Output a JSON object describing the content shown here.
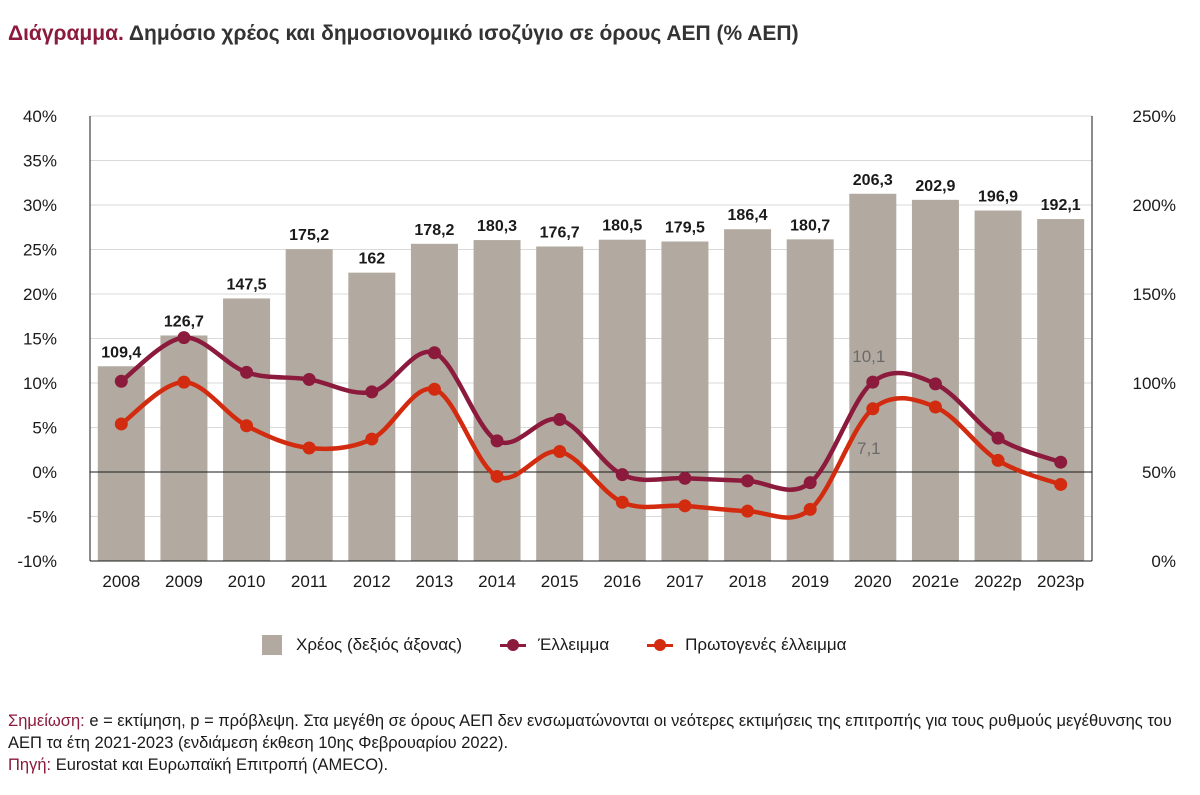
{
  "title": {
    "lead": "Διάγραμμα.",
    "text": "Δημόσιο χρέος και δημοσιονομικό ισοζύγιο σε όρους ΑΕΠ (% ΑΕΠ)"
  },
  "colors": {
    "bar": "#b2aaa0",
    "deficit": "#8b1a3c",
    "primary": "#d22b0f",
    "title_accent": "#8b1a3c"
  },
  "chart_data": {
    "type": "bar+line",
    "categories": [
      "2008",
      "2009",
      "2010",
      "2011",
      "2012",
      "2013",
      "2014",
      "2015",
      "2016",
      "2017",
      "2018",
      "2019",
      "2020",
      "2021e",
      "2022p",
      "2023p"
    ],
    "left_axis": {
      "min": -10,
      "max": 40,
      "step": 5,
      "ticks": [
        "40%",
        "35%",
        "30%",
        "25%",
        "20%",
        "15%",
        "10%",
        "5%",
        "0%",
        "-5%",
        "-10%"
      ]
    },
    "right_axis": {
      "min": 0,
      "max": 250,
      "step": 50,
      "ticks": [
        "250%",
        "200%",
        "150%",
        "100%",
        "50%",
        "0%"
      ]
    },
    "series": [
      {
        "name": "Χρέος (δεξιός άξονας)",
        "kind": "bar",
        "axis": "right",
        "values": [
          109.4,
          126.7,
          147.5,
          175.2,
          162,
          178.2,
          180.3,
          176.7,
          180.5,
          179.5,
          186.4,
          180.7,
          206.3,
          202.9,
          196.9,
          192.1
        ],
        "labels": [
          "109,4",
          "126,7",
          "147,5",
          "175,2",
          "162",
          "178,2",
          "180,3",
          "176,7",
          "180,5",
          "179,5",
          "186,4",
          "180,7",
          "206,3",
          "202,9",
          "196,9",
          "192,1"
        ]
      },
      {
        "name": "Έλλειμμα",
        "kind": "line",
        "axis": "left",
        "values": [
          10.2,
          15.1,
          11.2,
          10.4,
          9.0,
          13.4,
          3.5,
          5.9,
          -0.3,
          -0.7,
          -1.0,
          -1.2,
          10.1,
          9.9,
          3.8,
          1.1
        ]
      },
      {
        "name": "Πρωτογενές έλλειμμα",
        "kind": "line",
        "axis": "left",
        "values": [
          5.4,
          10.1,
          5.2,
          2.7,
          3.7,
          9.3,
          -0.5,
          2.3,
          -3.4,
          -3.8,
          -4.4,
          -4.2,
          7.1,
          7.3,
          1.3,
          -1.4
        ]
      }
    ],
    "annotations": [
      {
        "text": "10,1",
        "category": "2020",
        "series": "Έλλειμμα"
      },
      {
        "text": "7,1",
        "category": "2020",
        "series": "Πρωτογενές έλλειμμα"
      }
    ],
    "grid": "horizontal",
    "legend": "bottom"
  },
  "legend": [
    {
      "label": "Χρέος (δεξιός άξονας)",
      "kind": "bar"
    },
    {
      "label": "Έλλειμμα",
      "kind": "line-deficit"
    },
    {
      "label": "Πρωτογενές έλλειμμα",
      "kind": "line-primary"
    }
  ],
  "notes": {
    "note_label": "Σημείωση:",
    "note_text": "e = εκτίμηση, p = πρόβλεψη. Στα μεγέθη σε όρους ΑΕΠ δεν ενσωματώνονται οι νεότερες εκτιμήσεις της επιτροπής για τους ρυθμούς μεγέθυνσης του ΑΕΠ τα έτη 2021-2023 (ενδιάμεση έκθεση 10ης Φεβρουαρίου 2022).",
    "source_label": "Πηγή:",
    "source_text": "Eurostat και Ευρωπαϊκή Επιτροπή (AMECO)."
  }
}
